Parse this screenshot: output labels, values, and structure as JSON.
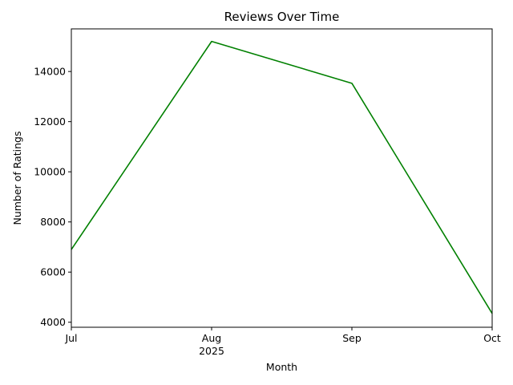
{
  "chart_data": {
    "type": "line",
    "title": "Reviews Over Time",
    "xlabel": "Month",
    "ylabel": "Number of Ratings",
    "x": [
      "2025-07",
      "2025-08",
      "2025-09",
      "2025-10"
    ],
    "x_tick_labels": [
      "Jul",
      "Aug",
      "Sep",
      "Oct"
    ],
    "x_year_label": "2025",
    "series": [
      {
        "values": [
          6900,
          15200,
          13530,
          4350
        ],
        "color": "#008000"
      }
    ],
    "ylim": [
      3800,
      15700
    ],
    "y_ticks": [
      4000,
      6000,
      8000,
      10000,
      12000,
      14000
    ],
    "grid": false,
    "legend": "none"
  }
}
